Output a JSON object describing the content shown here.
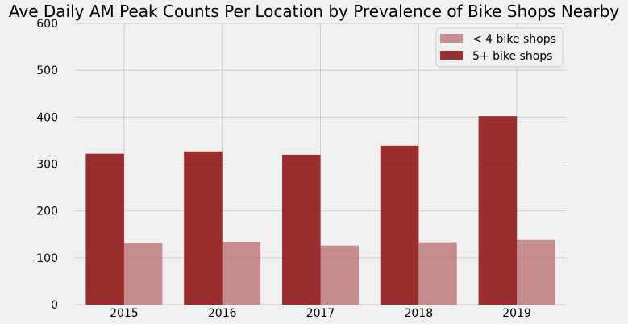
{
  "chart_data": {
    "type": "bar",
    "title": "Ave Daily AM Peak Counts Per Location by Prevalence of Bike Shops Nearby",
    "xlabel": "",
    "ylabel": "",
    "categories": [
      "2015",
      "2016",
      "2017",
      "2018",
      "2019"
    ],
    "series": [
      {
        "name": "< 4 bike shops",
        "values": [
          131,
          134,
          126,
          133,
          138
        ],
        "color": "#b86b6d"
      },
      {
        "name": "5+ bike shops",
        "values": [
          322,
          327,
          320,
          339,
          402
        ],
        "color": "#8b0a0a"
      }
    ],
    "draw_order": [
      "5+ bike shops",
      "< 4 bike shops"
    ],
    "ylim": [
      0,
      600
    ],
    "yticks": [
      "0",
      "100",
      "200",
      "300",
      "400",
      "500",
      "600"
    ],
    "grid": true,
    "legend_position": "top-right",
    "background_color": "#f0f0f0",
    "grid_color": "#cbcbcb"
  }
}
